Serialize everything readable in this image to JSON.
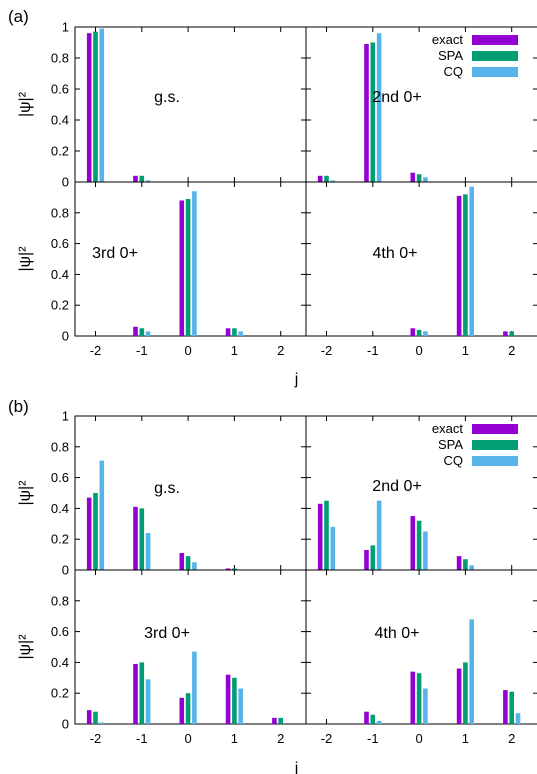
{
  "series_colors": {
    "exact": "#9400d3",
    "SPA": "#009e73",
    "CQ": "#56b4e9"
  },
  "legend": [
    "exact",
    "SPA",
    "CQ"
  ],
  "chart_data": [
    {
      "panel_label": "(a)",
      "type": "bar",
      "ylabel": "|ψ|²",
      "xlabel": "j",
      "ylim": [
        0,
        1
      ],
      "yticks": [
        "0",
        "0.2",
        "0.4",
        "0.6",
        "0.8",
        "1"
      ],
      "categories": [
        "-2",
        "-1",
        "0",
        "1",
        "2"
      ],
      "subplots": [
        {
          "label": "g.s.",
          "series": [
            {
              "name": "exact",
              "values": [
                0.96,
                0.04,
                0.0,
                0.0,
                0.0
              ]
            },
            {
              "name": "SPA",
              "values": [
                0.97,
                0.04,
                0.0,
                0.0,
                0.0
              ]
            },
            {
              "name": "CQ",
              "values": [
                0.99,
                0.01,
                0.0,
                0.0,
                0.0
              ]
            }
          ]
        },
        {
          "label": "2nd 0+",
          "series": [
            {
              "name": "exact",
              "values": [
                0.04,
                0.89,
                0.06,
                0.0,
                0.0
              ]
            },
            {
              "name": "SPA",
              "values": [
                0.04,
                0.9,
                0.05,
                0.0,
                0.0
              ]
            },
            {
              "name": "CQ",
              "values": [
                0.01,
                0.96,
                0.03,
                0.0,
                0.0
              ]
            }
          ]
        },
        {
          "label": "3rd 0+",
          "series": [
            {
              "name": "exact",
              "values": [
                0.0,
                0.06,
                0.88,
                0.05,
                0.0
              ]
            },
            {
              "name": "SPA",
              "values": [
                0.0,
                0.05,
                0.89,
                0.05,
                0.0
              ]
            },
            {
              "name": "CQ",
              "values": [
                0.0,
                0.03,
                0.94,
                0.03,
                0.0
              ]
            }
          ]
        },
        {
          "label": "4th 0+",
          "series": [
            {
              "name": "exact",
              "values": [
                0.0,
                0.0,
                0.05,
                0.91,
                0.03
              ]
            },
            {
              "name": "SPA",
              "values": [
                0.0,
                0.0,
                0.04,
                0.92,
                0.03
              ]
            },
            {
              "name": "CQ",
              "values": [
                0.0,
                0.0,
                0.03,
                0.97,
                0.0
              ]
            }
          ]
        }
      ]
    },
    {
      "panel_label": "(b)",
      "type": "bar",
      "ylabel": "|ψ|²",
      "xlabel": "j",
      "ylim": [
        0,
        1
      ],
      "yticks": [
        "0",
        "0.2",
        "0.4",
        "0.6",
        "0.8",
        "1"
      ],
      "categories": [
        "-2",
        "-1",
        "0",
        "1",
        "2"
      ],
      "subplots": [
        {
          "label": "g.s.",
          "series": [
            {
              "name": "exact",
              "values": [
                0.47,
                0.41,
                0.11,
                0.01,
                0.0
              ]
            },
            {
              "name": "SPA",
              "values": [
                0.5,
                0.4,
                0.09,
                0.01,
                0.0
              ]
            },
            {
              "name": "CQ",
              "values": [
                0.71,
                0.24,
                0.05,
                0.0,
                0.0
              ]
            }
          ]
        },
        {
          "label": "2nd 0+",
          "series": [
            {
              "name": "exact",
              "values": [
                0.43,
                0.13,
                0.35,
                0.09,
                0.0
              ]
            },
            {
              "name": "SPA",
              "values": [
                0.45,
                0.16,
                0.32,
                0.07,
                0.0
              ]
            },
            {
              "name": "CQ",
              "values": [
                0.28,
                0.45,
                0.25,
                0.03,
                0.0
              ]
            }
          ]
        },
        {
          "label": "3rd 0+",
          "series": [
            {
              "name": "exact",
              "values": [
                0.09,
                0.39,
                0.17,
                0.32,
                0.04
              ]
            },
            {
              "name": "SPA",
              "values": [
                0.08,
                0.4,
                0.2,
                0.3,
                0.04
              ]
            },
            {
              "name": "CQ",
              "values": [
                0.01,
                0.29,
                0.47,
                0.23,
                0.0
              ]
            }
          ]
        },
        {
          "label": "4th 0+",
          "series": [
            {
              "name": "exact",
              "values": [
                0.0,
                0.08,
                0.34,
                0.36,
                0.22
              ]
            },
            {
              "name": "SPA",
              "values": [
                0.0,
                0.06,
                0.33,
                0.4,
                0.21
              ]
            },
            {
              "name": "CQ",
              "values": [
                0.0,
                0.02,
                0.23,
                0.68,
                0.07
              ]
            }
          ]
        }
      ]
    }
  ]
}
